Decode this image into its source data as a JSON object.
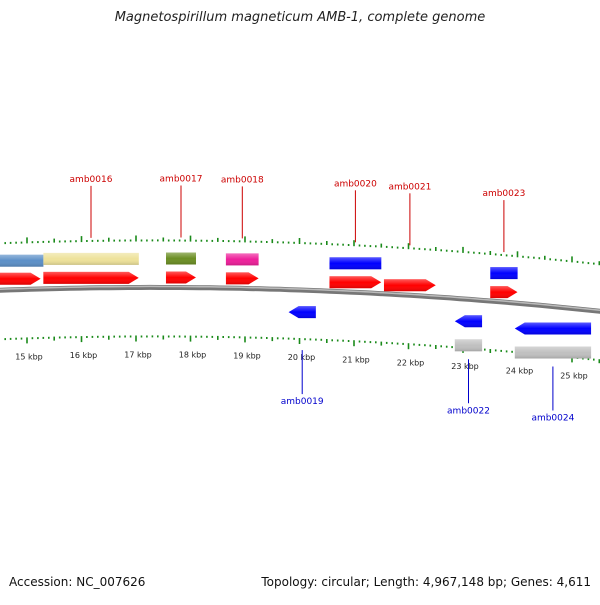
{
  "title": "Magnetospirillum magneticum AMB-1, complete genome",
  "footer": {
    "accession": "Accession: NC_007626",
    "summary": "Topology: circular; Length: 4,967,148 bp; Genes: 4,611"
  },
  "colors": {
    "forward_gene": "#ff0000",
    "reverse_gene": "#0000ff",
    "forward_label": "#cc0000",
    "reverse_label": "#0000cc",
    "tick": "#1a8a1a",
    "backbone": "#808080",
    "pseudo": "#c0c0c0"
  },
  "axis": {
    "unit": "kbp",
    "labels": [
      "15 kbp",
      "16 kbp",
      "17 kbp",
      "18 kbp",
      "19 kbp",
      "20 kbp",
      "21 kbp",
      "22 kbp",
      "23 kbp",
      "24 kbp",
      "25 kbp"
    ]
  },
  "genes": [
    {
      "id": "amb0016",
      "strand": "+",
      "start_kbp": 15.3,
      "end_kbp": 17.05,
      "labeled": true
    },
    {
      "id": "amb0017",
      "strand": "+",
      "start_kbp": 17.55,
      "end_kbp": 18.1,
      "labeled": true
    },
    {
      "id": "amb0018",
      "strand": "+",
      "start_kbp": 18.65,
      "end_kbp": 19.25,
      "labeled": true
    },
    {
      "id": "amb0019",
      "strand": "-",
      "start_kbp": 19.8,
      "end_kbp": 20.3,
      "labeled": true
    },
    {
      "id": "amb0020",
      "strand": "+",
      "start_kbp": 20.55,
      "end_kbp": 21.5,
      "labeled": true
    },
    {
      "id": "amb0021",
      "strand": "+",
      "start_kbp": 21.55,
      "end_kbp": 22.5,
      "labeled": true
    },
    {
      "id": "amb0022",
      "strand": "-",
      "start_kbp": 22.85,
      "end_kbp": 23.35,
      "labeled": true
    },
    {
      "id": "amb0023",
      "strand": "+",
      "start_kbp": 23.5,
      "end_kbp": 24.0,
      "labeled": true
    },
    {
      "id": "amb0024",
      "strand": "-",
      "start_kbp": 23.95,
      "end_kbp": 25.35,
      "labeled": true
    }
  ],
  "features": [
    {
      "kind": "gene-block",
      "strand": "+",
      "start_kbp": 14.3,
      "end_kbp": 15.3,
      "color": "#5b8fc7"
    },
    {
      "kind": "gene-block",
      "strand": "+",
      "start_kbp": 15.3,
      "end_kbp": 17.05,
      "color": "#eee29a"
    },
    {
      "kind": "gene-block",
      "strand": "+",
      "start_kbp": 17.55,
      "end_kbp": 18.1,
      "color": "#6b8e23"
    },
    {
      "kind": "gene-block",
      "strand": "+",
      "start_kbp": 18.65,
      "end_kbp": 19.25,
      "color": "#ee1f9a"
    },
    {
      "kind": "gene-block",
      "strand": "+",
      "start_kbp": 20.55,
      "end_kbp": 21.5,
      "color": "#0000ff"
    },
    {
      "kind": "gene-block",
      "strand": "+",
      "start_kbp": 23.5,
      "end_kbp": 24.0,
      "color": "#0000ff"
    },
    {
      "kind": "gene-block",
      "strand": "-",
      "start_kbp": 22.85,
      "end_kbp": 23.35,
      "color": "#c0c0c0"
    },
    {
      "kind": "gene-block",
      "strand": "-",
      "start_kbp": 23.95,
      "end_kbp": 25.35,
      "color": "#c0c0c0"
    },
    {
      "kind": "cds",
      "strand": "+",
      "start_kbp": 14.3,
      "end_kbp": 15.25,
      "color": "#ff0000"
    }
  ]
}
